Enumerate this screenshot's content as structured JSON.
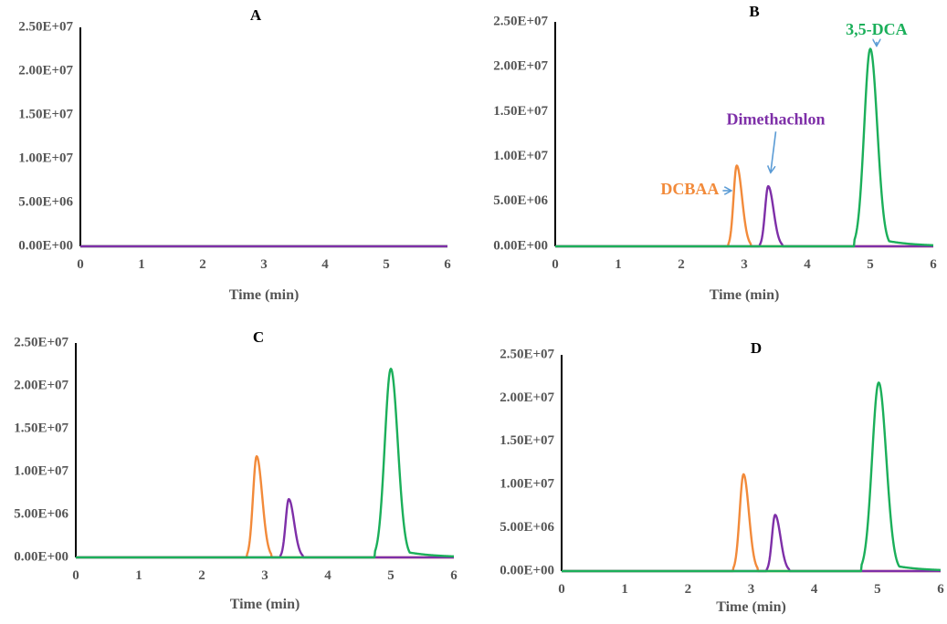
{
  "colors": {
    "orange": "#F28A3A",
    "purple": "#7E2FA8",
    "green": "#1BAF5A",
    "arrow": "#5A9BD5",
    "axis": "#000000"
  },
  "chart_data": [
    {
      "type": "line",
      "title": "A",
      "xlabel": "Time (min)",
      "ylabel": "",
      "xlim": [
        0,
        6
      ],
      "ylim": [
        0,
        25000000
      ],
      "xticks": [
        "0",
        "1",
        "2",
        "3",
        "4",
        "5",
        "6"
      ],
      "yticks": [
        "0.00E+00",
        "5.00E+06",
        "1.00E+07",
        "1.50E+07",
        "2.00E+07",
        "2.50E+07"
      ],
      "grid": false,
      "series": [
        {
          "color": "#F28A3A",
          "peaks": []
        },
        {
          "color": "#1BAF5A",
          "peaks": []
        },
        {
          "color": "#7E2FA8",
          "peaks": []
        }
      ],
      "annotations": []
    },
    {
      "type": "line",
      "title": "B",
      "xlabel": "Time (min)",
      "ylabel": "",
      "xlim": [
        0,
        6
      ],
      "ylim": [
        0,
        25000000
      ],
      "xticks": [
        "0",
        "1",
        "2",
        "3",
        "4",
        "5",
        "6"
      ],
      "yticks": [
        "0.00E+00",
        "5.00E+06",
        "1.00E+07",
        "1.50E+07",
        "2.00E+07",
        "2.50E+07"
      ],
      "grid": false,
      "series": [
        {
          "color": "#F28A3A",
          "peaks": [
            {
              "rt": 2.88,
              "height": 9000000,
              "start": 2.75,
              "end": 3.1
            }
          ]
        },
        {
          "color": "#7E2FA8",
          "peaks": [
            {
              "rt": 3.38,
              "height": 6700000,
              "start": 3.25,
              "end": 3.6
            }
          ]
        },
        {
          "color": "#1BAF5A",
          "peaks": [
            {
              "rt": 5.0,
              "height": 22000000,
              "start": 4.75,
              "end": 6.0
            }
          ]
        }
      ],
      "annotations": [
        {
          "text": "DCBAA",
          "color": "#F28A3A",
          "x": 2.6,
          "y": 6200000,
          "arrow_to": [
            2.78,
            6200000
          ]
        },
        {
          "text": "Dimethachlon",
          "color": "#7E2FA8",
          "x": 3.5,
          "y": 14000000,
          "arrow_to": [
            3.42,
            8300000
          ]
        },
        {
          "text": "3,5-DCA",
          "color": "#1BAF5A",
          "x": 5.1,
          "y": 24000000,
          "arrow_to": [
            5.1,
            22400000
          ]
        }
      ]
    },
    {
      "type": "line",
      "title": "C",
      "xlabel": "Time (min)",
      "ylabel": "",
      "xlim": [
        0,
        6
      ],
      "ylim": [
        0,
        25000000
      ],
      "xticks": [
        "0",
        "1",
        "2",
        "3",
        "4",
        "5",
        "6"
      ],
      "yticks": [
        "0.00E+00",
        "5.00E+06",
        "1.00E+07",
        "1.50E+07",
        "2.00E+07",
        "2.50E+07"
      ],
      "grid": false,
      "series": [
        {
          "color": "#F28A3A",
          "peaks": [
            {
              "rt": 2.87,
              "height": 11800000,
              "start": 2.72,
              "end": 3.1
            }
          ]
        },
        {
          "color": "#7E2FA8",
          "peaks": [
            {
              "rt": 3.38,
              "height": 6800000,
              "start": 3.25,
              "end": 3.6
            }
          ]
        },
        {
          "color": "#1BAF5A",
          "peaks": [
            {
              "rt": 5.0,
              "height": 22000000,
              "start": 4.75,
              "end": 6.0
            }
          ]
        }
      ],
      "annotations": []
    },
    {
      "type": "line",
      "title": "D",
      "xlabel": "Time (min)",
      "ylabel": "",
      "xlim": [
        0,
        6
      ],
      "ylim": [
        0,
        25000000
      ],
      "xticks": [
        "0",
        "1",
        "2",
        "3",
        "4",
        "5",
        "6"
      ],
      "yticks": [
        "0.00E+00",
        "5.00E+06",
        "1.00E+07",
        "1.50E+07",
        "2.00E+07",
        "2.50E+07"
      ],
      "grid": false,
      "series": [
        {
          "color": "#F28A3A",
          "peaks": [
            {
              "rt": 2.88,
              "height": 11200000,
              "start": 2.72,
              "end": 3.1
            }
          ]
        },
        {
          "color": "#7E2FA8",
          "peaks": [
            {
              "rt": 3.38,
              "height": 6500000,
              "start": 3.25,
              "end": 3.6
            }
          ]
        },
        {
          "color": "#1BAF5A",
          "peaks": [
            {
              "rt": 5.02,
              "height": 21800000,
              "start": 4.75,
              "end": 6.0
            }
          ]
        }
      ],
      "annotations": []
    }
  ]
}
